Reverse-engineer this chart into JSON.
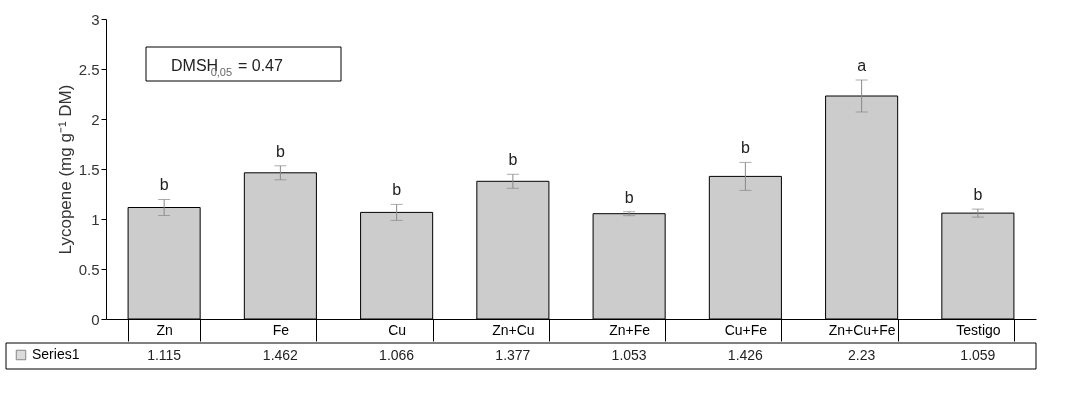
{
  "chart_data": {
    "type": "bar",
    "ylabel": "Lycopene (mg g⁻¹ DM)",
    "categories": [
      "Zn",
      "Fe",
      "Cu",
      "Zn+Cu",
      "Zn+Fe",
      "Cu+Fe",
      "Zn+Cu+Fe",
      "Testigo"
    ],
    "series": [
      {
        "name": "Series1",
        "color": "#cccccc",
        "values": [
          1.115,
          1.462,
          1.066,
          1.377,
          1.053,
          1.426,
          2.23,
          1.059
        ],
        "errors": [
          0.08,
          0.07,
          0.08,
          0.07,
          0.02,
          0.14,
          0.16,
          0.04
        ]
      }
    ],
    "ylim": [
      0,
      3
    ],
    "yticks": [
      0,
      0.5,
      1,
      1.5,
      2,
      2.5,
      3
    ],
    "grid": false,
    "legend": "left",
    "data_labels": true,
    "annotations": [
      "DMSH$_{0,05}$= 0.47",
      {
        "text": "b",
        "x": "Zn",
        "y": 1.2
      },
      {
        "text": "b",
        "x": "Fe",
        "y": 1.53
      },
      {
        "text": "b",
        "x": "Cu",
        "y": 1.15
      },
      {
        "text": "b",
        "x": "Zn+Cu",
        "y": 1.45
      },
      {
        "text": "b",
        "x": "Zn+Fe",
        "y": 1.07
      },
      {
        "text": "b",
        "x": "Cu+Fe",
        "y": 1.57
      },
      {
        "text": "a",
        "x": "Zn+Cu+Fe",
        "y": 2.39
      },
      {
        "text": "b",
        "x": "Testigo",
        "y": 1.1
      }
    ]
  }
}
